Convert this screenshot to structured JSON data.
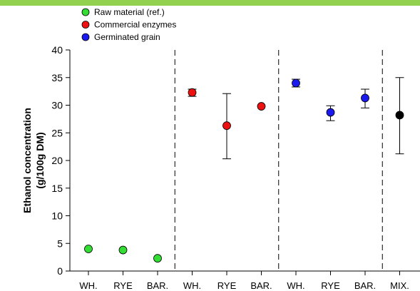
{
  "colors": {
    "top_bar": "#92d050",
    "raw_material": "#33dd33",
    "commercial_enzymes": "#ee1111",
    "germinated_grain": "#1a1aee",
    "mix": "#000000"
  },
  "legend": [
    {
      "label": "Raw material (ref.)",
      "color": "#33dd33"
    },
    {
      "label": "Commercial enzymes",
      "color": "#ee1111"
    },
    {
      "label": "Germinated grain",
      "color": "#1a1aee"
    }
  ],
  "chart_data": {
    "type": "scatter",
    "title": "",
    "ylabel_line1": "Ethanol concentration",
    "ylabel_line2": "(g/100g DM)",
    "xlabel": "",
    "ylim": [
      0,
      40
    ],
    "yticks": [
      0,
      5,
      10,
      15,
      20,
      25,
      30,
      35,
      40
    ],
    "grid": false,
    "legend_position": "top-left",
    "categories": [
      "WH.",
      "RYE",
      "BAR.",
      "WH.",
      "RYE",
      "BAR.",
      "WH.",
      "RYE",
      "BAR.",
      "MIX."
    ],
    "group_separators_after": [
      2,
      5,
      8
    ],
    "series": [
      {
        "name": "Raw material (ref.)",
        "color": "#33dd33",
        "points": [
          {
            "category_index": 0,
            "y": 4.0,
            "err_low": 4.0,
            "err_high": 4.0
          },
          {
            "category_index": 1,
            "y": 3.8,
            "err_low": 3.8,
            "err_high": 3.8
          },
          {
            "category_index": 2,
            "y": 2.3,
            "err_low": 2.3,
            "err_high": 2.3
          }
        ]
      },
      {
        "name": "Commercial enzymes",
        "color": "#ee1111",
        "points": [
          {
            "category_index": 3,
            "y": 32.3,
            "err_low": 31.6,
            "err_high": 32.9
          },
          {
            "category_index": 4,
            "y": 26.3,
            "err_low": 20.3,
            "err_high": 32.1
          },
          {
            "category_index": 5,
            "y": 29.8,
            "err_low": 29.8,
            "err_high": 29.8
          }
        ]
      },
      {
        "name": "Germinated grain",
        "color": "#1a1aee",
        "points": [
          {
            "category_index": 6,
            "y": 34.0,
            "err_low": 33.3,
            "err_high": 34.7
          },
          {
            "category_index": 7,
            "y": 28.7,
            "err_low": 27.2,
            "err_high": 29.9
          },
          {
            "category_index": 8,
            "y": 31.3,
            "err_low": 29.5,
            "err_high": 32.9
          }
        ]
      },
      {
        "name": "",
        "color": "#000000",
        "points": [
          {
            "category_index": 9,
            "y": 28.2,
            "err_low": 21.2,
            "err_high": 35.0
          }
        ]
      }
    ]
  }
}
